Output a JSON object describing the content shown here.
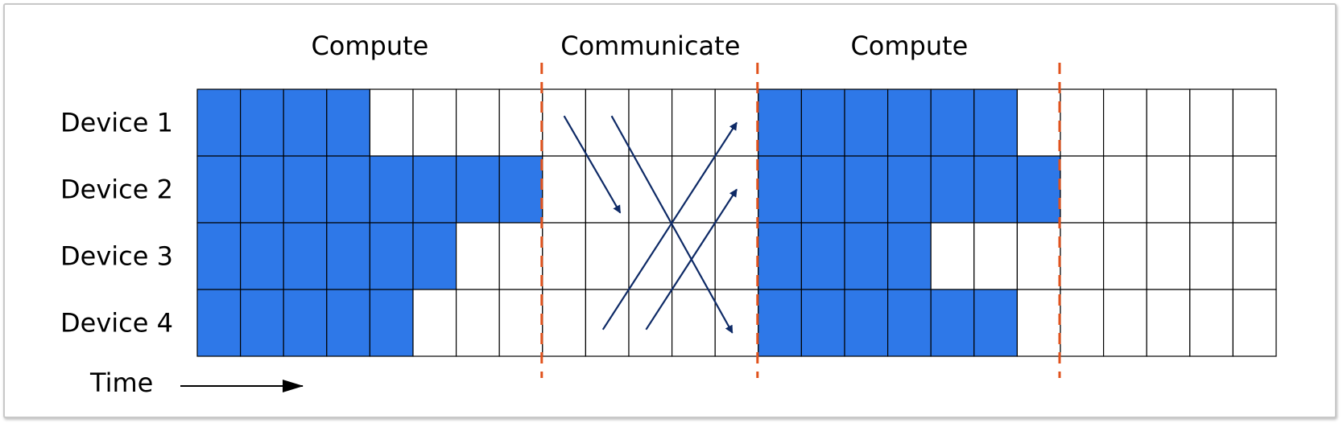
{
  "phases": [
    {
      "label": "Compute",
      "start": 0,
      "end": 8
    },
    {
      "label": "Communicate",
      "start": 8,
      "end": 13
    },
    {
      "label": "Compute",
      "start": 13,
      "end": 20
    }
  ],
  "devices": [
    {
      "label": "Device 1",
      "filled": [
        0,
        1,
        2,
        3,
        13,
        14,
        15,
        16,
        17,
        18
      ]
    },
    {
      "label": "Device 2",
      "filled": [
        0,
        1,
        2,
        3,
        4,
        5,
        6,
        7,
        13,
        14,
        15,
        16,
        17,
        18,
        19
      ]
    },
    {
      "label": "Device 3",
      "filled": [
        0,
        1,
        2,
        3,
        4,
        5,
        13,
        14,
        15,
        16
      ]
    },
    {
      "label": "Device 4",
      "filled": [
        0,
        1,
        2,
        3,
        4,
        13,
        14,
        15,
        16,
        17,
        18
      ]
    }
  ],
  "time_label": "Time",
  "grid": {
    "columns": 25,
    "rows": 4
  },
  "dividers_at_column": [
    8,
    13,
    20
  ],
  "arrows": [
    {
      "from": {
        "col": 8.5,
        "row": 0.4
      },
      "to": {
        "col": 9.8,
        "row": 1.85
      }
    },
    {
      "from": {
        "col": 9.6,
        "row": 0.4
      },
      "to": {
        "col": 12.4,
        "row": 3.65
      }
    },
    {
      "from": {
        "col": 9.4,
        "row": 3.6
      },
      "to": {
        "col": 12.5,
        "row": 0.5
      }
    },
    {
      "from": {
        "col": 10.4,
        "row": 3.6
      },
      "to": {
        "col": 12.5,
        "row": 1.5
      }
    }
  ],
  "colors": {
    "fill": "#2e78e8",
    "grid": "#000000",
    "divider": "#e0521c",
    "arrow": "#0e2a66"
  }
}
